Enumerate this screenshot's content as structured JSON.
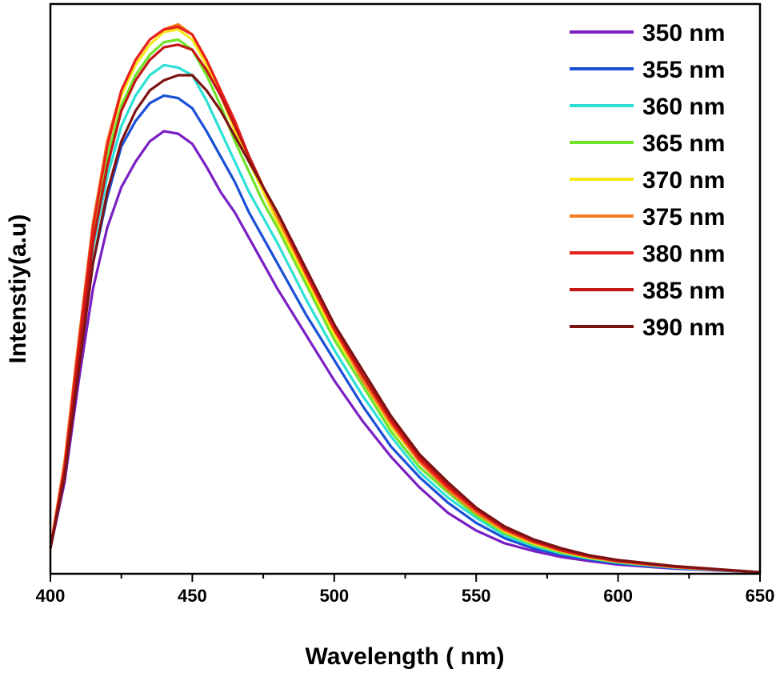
{
  "chart_data": {
    "type": "line",
    "xlabel": "Wavelength ( nm)",
    "ylabel": "Intenstiy(a.u)",
    "xlim": [
      400,
      650
    ],
    "ylim": [
      0,
      1.12
    ],
    "x_ticks": [
      400,
      450,
      500,
      550,
      600,
      650
    ],
    "y_ticks_shown": false,
    "grid": false,
    "legend_position": "top-right",
    "x": [
      400,
      405,
      410,
      415,
      420,
      425,
      430,
      435,
      440,
      445,
      450,
      455,
      460,
      465,
      470,
      475,
      480,
      490,
      500,
      510,
      520,
      530,
      540,
      550,
      560,
      570,
      580,
      590,
      600,
      620,
      650
    ],
    "series": [
      {
        "name": "350 nm",
        "color": "#7a1fc4",
        "peak": 0.87,
        "values": [
          0.05,
          0.18,
          0.38,
          0.56,
          0.68,
          0.76,
          0.81,
          0.85,
          0.87,
          0.865,
          0.845,
          0.8,
          0.75,
          0.71,
          0.66,
          0.61,
          0.56,
          0.47,
          0.38,
          0.3,
          0.23,
          0.17,
          0.12,
          0.085,
          0.06,
          0.045,
          0.033,
          0.025,
          0.018,
          0.01,
          0.003
        ]
      },
      {
        "name": "355 nm",
        "color": "#1a4fd6",
        "peak": 0.94,
        "values": [
          0.05,
          0.19,
          0.41,
          0.61,
          0.74,
          0.84,
          0.89,
          0.925,
          0.94,
          0.935,
          0.915,
          0.87,
          0.82,
          0.77,
          0.71,
          0.66,
          0.61,
          0.51,
          0.42,
          0.33,
          0.25,
          0.19,
          0.14,
          0.1,
          0.07,
          0.05,
          0.037,
          0.028,
          0.02,
          0.011,
          0.003
        ]
      },
      {
        "name": "360 nm",
        "color": "#2ce0d6",
        "peak": 1.0,
        "values": [
          0.05,
          0.2,
          0.43,
          0.64,
          0.78,
          0.88,
          0.94,
          0.98,
          1.0,
          0.995,
          0.98,
          0.93,
          0.87,
          0.81,
          0.75,
          0.7,
          0.65,
          0.54,
          0.44,
          0.35,
          0.27,
          0.2,
          0.15,
          0.11,
          0.075,
          0.055,
          0.04,
          0.03,
          0.022,
          0.012,
          0.003
        ]
      },
      {
        "name": "365 nm",
        "color": "#6ee32a",
        "peak": 1.05,
        "values": [
          0.05,
          0.21,
          0.45,
          0.67,
          0.82,
          0.92,
          0.98,
          1.02,
          1.045,
          1.05,
          1.03,
          0.98,
          0.92,
          0.85,
          0.79,
          0.73,
          0.68,
          0.57,
          0.46,
          0.37,
          0.28,
          0.21,
          0.16,
          0.115,
          0.08,
          0.058,
          0.042,
          0.031,
          0.023,
          0.013,
          0.003
        ]
      },
      {
        "name": "370 nm",
        "color": "#f5e81a",
        "peak": 1.07,
        "values": [
          0.05,
          0.22,
          0.46,
          0.68,
          0.84,
          0.94,
          1.0,
          1.04,
          1.065,
          1.07,
          1.05,
          1.0,
          0.94,
          0.87,
          0.81,
          0.75,
          0.69,
          0.58,
          0.47,
          0.38,
          0.29,
          0.22,
          0.165,
          0.12,
          0.083,
          0.06,
          0.044,
          0.032,
          0.024,
          0.013,
          0.003
        ]
      },
      {
        "name": "375 nm",
        "color": "#f57a1e",
        "peak": 1.08,
        "values": [
          0.05,
          0.22,
          0.46,
          0.69,
          0.85,
          0.95,
          1.01,
          1.05,
          1.07,
          1.08,
          1.06,
          1.01,
          0.95,
          0.88,
          0.82,
          0.76,
          0.7,
          0.59,
          0.48,
          0.38,
          0.295,
          0.22,
          0.165,
          0.12,
          0.085,
          0.062,
          0.045,
          0.033,
          0.024,
          0.013,
          0.003
        ]
      },
      {
        "name": "380 nm",
        "color": "#e8201c",
        "peak": 1.075,
        "values": [
          0.05,
          0.21,
          0.45,
          0.68,
          0.84,
          0.95,
          1.01,
          1.05,
          1.07,
          1.075,
          1.06,
          1.01,
          0.95,
          0.89,
          0.82,
          0.76,
          0.71,
          0.59,
          0.48,
          0.39,
          0.3,
          0.225,
          0.17,
          0.125,
          0.088,
          0.064,
          0.046,
          0.034,
          0.025,
          0.014,
          0.003
        ]
      },
      {
        "name": "385 nm",
        "color": "#c41414",
        "peak": 1.04,
        "values": [
          0.05,
          0.2,
          0.43,
          0.65,
          0.8,
          0.91,
          0.97,
          1.01,
          1.035,
          1.04,
          1.03,
          0.99,
          0.94,
          0.88,
          0.82,
          0.76,
          0.71,
          0.6,
          0.49,
          0.39,
          0.305,
          0.23,
          0.175,
          0.128,
          0.09,
          0.066,
          0.048,
          0.035,
          0.026,
          0.014,
          0.003
        ]
      },
      {
        "name": "390 nm",
        "color": "#7d1212",
        "peak": 0.98,
        "values": [
          0.05,
          0.19,
          0.4,
          0.61,
          0.75,
          0.85,
          0.91,
          0.95,
          0.97,
          0.98,
          0.98,
          0.95,
          0.91,
          0.86,
          0.81,
          0.76,
          0.71,
          0.6,
          0.49,
          0.4,
          0.31,
          0.235,
          0.18,
          0.13,
          0.093,
          0.068,
          0.05,
          0.036,
          0.027,
          0.015,
          0.003
        ]
      }
    ]
  }
}
